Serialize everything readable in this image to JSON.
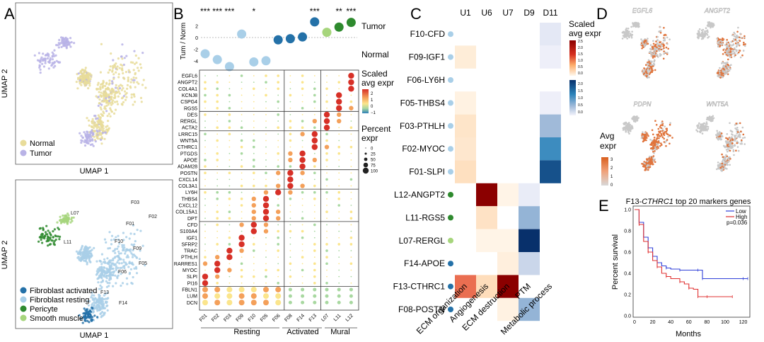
{
  "panels": {
    "A": {
      "letter": "A",
      "top": {
        "xlabel": "UMAP 1",
        "ylabel": "UMAP 2",
        "legend": [
          {
            "label": "Normal",
            "color": "#e8dc9a"
          },
          {
            "label": "Tumor",
            "color": "#b9b3e6"
          }
        ]
      },
      "bottom": {
        "xlabel": "UMAP 1",
        "ylabel": "UMAP 2",
        "legend": [
          {
            "label": "Fibroblast activated",
            "color": "#2471a8"
          },
          {
            "label": "Fibroblast resting",
            "color": "#a9cfe8"
          },
          {
            "label": "Pericyte",
            "color": "#2e8a2e"
          },
          {
            "label": "Smooth muscle",
            "color": "#a6d57c"
          }
        ],
        "cluster_labels": [
          "L07",
          "F03",
          "F01",
          "F02",
          "L11",
          "F10",
          "F09",
          "F05",
          "F06",
          "F13",
          "F14"
        ]
      }
    },
    "B": {
      "letter": "B",
      "ylabel": "Tum / Norm",
      "tumor_label": "Tumor",
      "normal_label": "Normal",
      "y_ticks": [
        "2",
        "0",
        "-2",
        "-4"
      ],
      "clusters": [
        "F01",
        "F02",
        "F03",
        "F09",
        "F10",
        "F05",
        "F06",
        "F08",
        "F14",
        "F13",
        "L07",
        "L11",
        "L12"
      ],
      "groups": [
        "Resting",
        "Activated",
        "Mural"
      ],
      "significance": [
        "***",
        "***",
        "***",
        "",
        "*",
        "",
        "",
        "",
        "",
        "***",
        "",
        "**",
        "***"
      ],
      "log_ratio": [
        -2.8,
        -3.8,
        -5.0,
        0.6,
        -4.2,
        -4.0,
        -0.4,
        -0.2,
        0.1,
        2.7,
        0.9,
        1.8,
        2.6
      ],
      "genes": [
        "EGFL6",
        "ANGPT2",
        "COL4A1",
        "KCNJ8",
        "CSPG4",
        "RGS5",
        "DES",
        "RERGL",
        "ACTA2",
        "LRRC15",
        "WNT5A",
        "CTHRC1",
        "PTGDS",
        "APOE",
        "ADAM28",
        "POSTN",
        "CXCL14",
        "COL3A1",
        "LY6H",
        "THBS4",
        "CXCL12",
        "COL15A1",
        "DPT",
        "CFD",
        "S100A4",
        "IGF1",
        "SFRP2",
        "TRAC",
        "PTHLH",
        "RARRES1",
        "MYOC",
        "SLPI",
        "PI16",
        "FBLN1",
        "LUM",
        "DCN"
      ],
      "legend_expr_title": "Scaled avg expr",
      "legend_expr_ticks": [
        "2",
        "1",
        "0",
        "−1"
      ],
      "legend_pct_title": "Percent expr",
      "legend_pct_ticks": [
        "0",
        "25",
        "50",
        "75",
        "100"
      ]
    },
    "C": {
      "letter": "C",
      "columns": [
        "U1",
        "U6",
        "U7",
        "D9",
        "D11"
      ],
      "rows": [
        {
          "label": "F10-CFD",
          "dot": "#a9cfe8"
        },
        {
          "label": "F09-IGF1",
          "dot": "#a9cfe8"
        },
        {
          "label": "F06-LY6H",
          "dot": "#a9cfe8"
        },
        {
          "label": "F05-THBS4",
          "dot": "#a9cfe8"
        },
        {
          "label": "F03-PTHLH",
          "dot": "#a9cfe8"
        },
        {
          "label": "F02-MYOC",
          "dot": "#a9cfe8"
        },
        {
          "label": "F01-SLPI",
          "dot": "#a9cfe8"
        },
        {
          "label": "L12-ANGPT2",
          "dot": "#2e8a2e"
        },
        {
          "label": "L11-RGS5",
          "dot": "#2e8a2e"
        },
        {
          "label": "L07-RERGL",
          "dot": "#a6d57c"
        },
        {
          "label": "F14-APOE",
          "dot": "#2471a8"
        },
        {
          "label": "F13-CTHRC1",
          "dot": "#2471a8"
        },
        {
          "label": "F08-POSTN",
          "dot": "#2471a8"
        }
      ],
      "bottom_labels": [
        "ECM organization",
        "Angiogenesis",
        "ECM destruction",
        "PTM",
        "Metabolic process"
      ],
      "up_values": [
        [
          0,
          0,
          0,
          null,
          null
        ],
        [
          0.2,
          0,
          0,
          null,
          null
        ],
        [
          0,
          0,
          0,
          null,
          null
        ],
        [
          0.1,
          0,
          0,
          null,
          null
        ],
        [
          0.35,
          0,
          0,
          null,
          null
        ],
        [
          0.3,
          0,
          0,
          null,
          null
        ],
        [
          0.45,
          0,
          0,
          null,
          null
        ],
        [
          0,
          2.5,
          0.05,
          null,
          null
        ],
        [
          0,
          0.4,
          0,
          null,
          null
        ],
        [
          0,
          0.05,
          0.05,
          null,
          null
        ],
        [
          0,
          0,
          0.15,
          null,
          null
        ],
        [
          1.3,
          0.5,
          2.5,
          null,
          null
        ],
        [
          0,
          0,
          0.1,
          null,
          null
        ]
      ],
      "down_values": [
        [
          null,
          null,
          null,
          0,
          0.15
        ],
        [
          null,
          null,
          null,
          0,
          0.05
        ],
        [
          null,
          null,
          null,
          0,
          0
        ],
        [
          null,
          null,
          null,
          0,
          0.05
        ],
        [
          null,
          null,
          null,
          0,
          0.8
        ],
        [
          null,
          null,
          null,
          0,
          1.6
        ],
        [
          null,
          null,
          null,
          0,
          2.2
        ],
        [
          null,
          null,
          null,
          0.1,
          0
        ],
        [
          null,
          null,
          null,
          0.9,
          0
        ],
        [
          null,
          null,
          null,
          2.5,
          0
        ],
        [
          null,
          null,
          null,
          0.4,
          0
        ],
        [
          null,
          null,
          null,
          0,
          0
        ],
        [
          null,
          null,
          null,
          0.9,
          0
        ]
      ],
      "legend_title": "Scaled avg expr",
      "legend_up_ticks": [
        "2.5",
        "2.0",
        "1.5",
        "1.0",
        "0.5",
        "0.0"
      ],
      "legend_down_ticks": [
        "2.0",
        "1.5",
        "1.0",
        "0.5",
        "0.0"
      ]
    },
    "D": {
      "letter": "D",
      "genes": [
        "EGFL6",
        "ANGPT2",
        "PDPN",
        "WNT5A"
      ],
      "legend_title": "Avg expr",
      "legend_ticks": [
        "3",
        "2",
        "1",
        "0"
      ]
    },
    "E": {
      "letter": "E",
      "title_prefix": "F13-",
      "title_gene": "CTHRC1",
      "title_suffix": " top 20 markers genes",
      "xlabel": "Months",
      "ylabel": "Percent survival",
      "x_ticks": [
        "0",
        "20",
        "40",
        "60",
        "80",
        "100",
        "120"
      ],
      "y_ticks": [
        "0.0",
        "0.2",
        "0.4",
        "0.6",
        "0.8",
        "1.0"
      ],
      "legend": [
        {
          "label": "Low",
          "color": "#3040d8"
        },
        {
          "label": "High",
          "color": "#e03030"
        }
      ],
      "pvalue": "p=0.036"
    }
  },
  "chart_data": [
    {
      "type": "scatter",
      "ylabel": "Tum / Norm",
      "x": [
        "F01",
        "F02",
        "F03",
        "F09",
        "F10",
        "F05",
        "F06",
        "F08",
        "F14",
        "F13",
        "L07",
        "L11",
        "L12"
      ],
      "y": [
        -2.8,
        -3.8,
        -5.0,
        0.6,
        -4.2,
        -4.0,
        -0.4,
        -0.2,
        0.1,
        2.7,
        0.9,
        1.8,
        2.6
      ],
      "ylim": [
        -5,
        3
      ]
    },
    {
      "type": "line",
      "xlabel": "Months",
      "ylabel": "Percent survival",
      "xlim": [
        0,
        125
      ],
      "ylim": [
        0,
        1
      ],
      "series": [
        {
          "name": "Low",
          "x": [
            0,
            5,
            10,
            15,
            20,
            25,
            30,
            35,
            40,
            50,
            60,
            70,
            74,
            75,
            90,
            120,
            125
          ],
          "y": [
            1.0,
            0.88,
            0.74,
            0.64,
            0.56,
            0.5,
            0.47,
            0.45,
            0.44,
            0.43,
            0.43,
            0.43,
            0.43,
            0.35,
            0.35,
            0.35,
            0.35
          ]
        },
        {
          "name": "High",
          "x": [
            0,
            5,
            10,
            15,
            20,
            25,
            30,
            35,
            40,
            50,
            55,
            60,
            65,
            70,
            75,
            80,
            100,
            108
          ],
          "y": [
            1.0,
            0.86,
            0.7,
            0.6,
            0.52,
            0.46,
            0.4,
            0.37,
            0.35,
            0.32,
            0.3,
            0.26,
            0.25,
            0.18,
            0.18,
            0.18,
            0.18,
            0.18
          ]
        }
      ]
    }
  ]
}
